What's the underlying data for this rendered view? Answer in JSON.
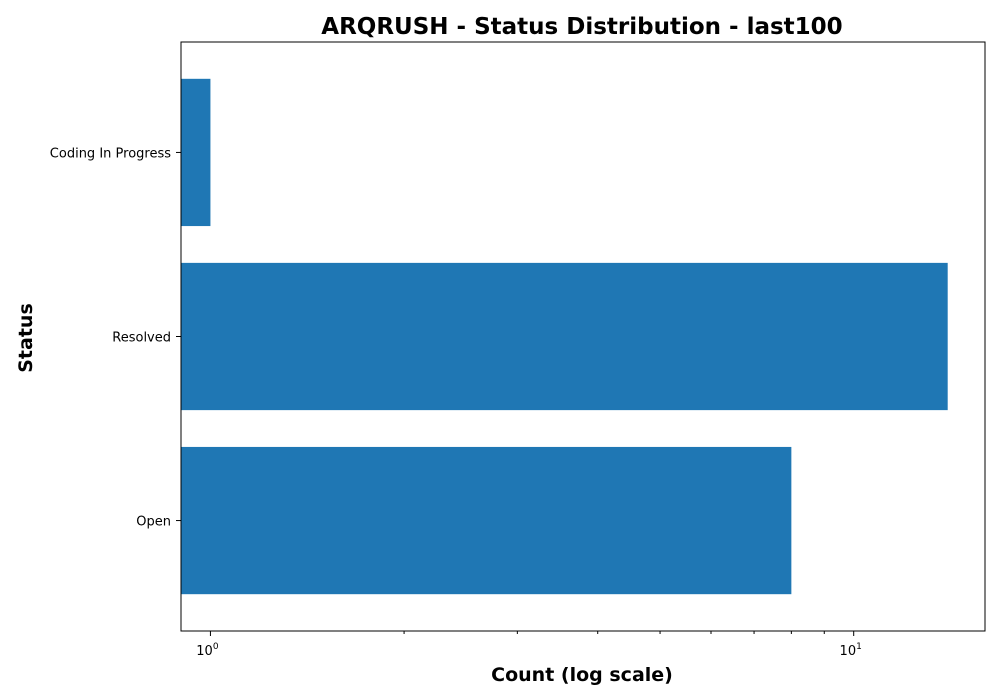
{
  "chart_data": {
    "type": "bar",
    "orientation": "horizontal",
    "title": "ARQRUSH - Status Distribution - last100",
    "xlabel": "Count (log scale)",
    "ylabel": "Status",
    "x_scale": "log",
    "xlim": [
      0.9,
      16
    ],
    "categories": [
      "Coding In Progress",
      "Resolved",
      "Open"
    ],
    "values": [
      1,
      14,
      8
    ],
    "x_ticks": [
      {
        "value": 1,
        "base": "10",
        "exponent": "0"
      },
      {
        "value": 10,
        "base": "10",
        "exponent": "1"
      }
    ],
    "bar_color": "#1f77b4",
    "grid": false,
    "legend": "none"
  }
}
